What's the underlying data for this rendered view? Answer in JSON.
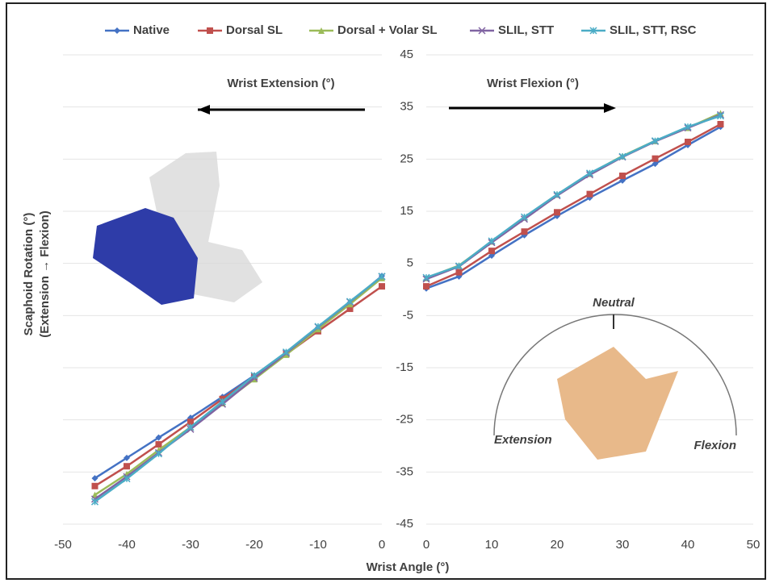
{
  "chart_data": [
    {
      "type": "line",
      "x_label": "Wrist Angle (°)",
      "y_label": [
        "Scaphoid Rotation (°)",
        "(Extension → Flexion)"
      ],
      "annotation": "Wrist Extension (°)",
      "x": [
        -45,
        -40,
        -35,
        -30,
        -25,
        -20,
        -15,
        -10,
        -5,
        0
      ],
      "xlim": [
        -50,
        0
      ],
      "xticks": [
        -50,
        -40,
        -30,
        -20,
        -10,
        0
      ],
      "ylim": [
        -45,
        45
      ],
      "series": [
        {
          "name": "Native",
          "color": "#4472c4",
          "marker": "diamond",
          "values": [
            -36.2,
            -32.3,
            -28.4,
            -24.6,
            -20.6,
            -16.5,
            -12.1,
            -7.3,
            -2.5,
            2.6
          ]
        },
        {
          "name": "Dorsal SL",
          "color": "#c0504d",
          "marker": "square",
          "values": [
            -37.7,
            -33.9,
            -29.7,
            -25.4,
            -21,
            -16.7,
            -12.4,
            -8,
            -3.7,
            0.6
          ]
        },
        {
          "name": "Dorsal + Volar SL",
          "color": "#9bbb59",
          "marker": "triangle",
          "values": [
            -39.4,
            -35.4,
            -30.8,
            -26.4,
            -21.8,
            -17.2,
            -12.5,
            -7.6,
            -2.8,
            2.2
          ]
        },
        {
          "name": "SLIL, STT",
          "color": "#8064a2",
          "marker": "x",
          "values": [
            -40.2,
            -35.9,
            -31.3,
            -26.8,
            -22,
            -17,
            -12.2,
            -7.2,
            -2.4,
            2.5
          ]
        },
        {
          "name": "SLIL, STT, RSC",
          "color": "#4bacc6",
          "marker": "star",
          "values": [
            -40.7,
            -36.3,
            -31.5,
            -26.4,
            -21.5,
            -16.5,
            -12,
            -7.1,
            -2.3,
            2.5
          ]
        }
      ]
    },
    {
      "type": "line",
      "annotation": "Wrist Flexion (°)",
      "illustration_labels": [
        "Neutral",
        "Extension",
        "Flexion"
      ],
      "x": [
        0,
        5,
        10,
        15,
        20,
        25,
        30,
        35,
        40,
        45
      ],
      "xlim": [
        0,
        50
      ],
      "xticks": [
        0,
        10,
        20,
        30,
        40,
        50
      ],
      "ylim": [
        -45,
        45
      ],
      "yticks": [
        45,
        35,
        25,
        15,
        5,
        -5,
        -15,
        -25,
        -35,
        -45
      ],
      "grid": true,
      "series": [
        {
          "color": "#4472c4",
          "marker": "diamond",
          "values": [
            0.2,
            2.5,
            6.5,
            10.4,
            14.1,
            17.6,
            20.9,
            24.1,
            27.7,
            31.2
          ]
        },
        {
          "color": "#c0504d",
          "marker": "square",
          "values": [
            0.6,
            3.3,
            7.4,
            11.1,
            14.8,
            18.3,
            21.8,
            25.1,
            28.3,
            31.7
          ]
        },
        {
          "color": "#9bbb59",
          "marker": "triangle",
          "values": [
            2.2,
            4.6,
            9.2,
            13.8,
            18.2,
            22.2,
            25.6,
            28.5,
            31,
            33.8
          ]
        },
        {
          "color": "#8064a2",
          "marker": "x",
          "values": [
            2,
            4.4,
            9,
            13.5,
            18,
            22,
            25.4,
            28.4,
            31,
            33.5
          ]
        },
        {
          "color": "#4bacc6",
          "marker": "star",
          "values": [
            2.3,
            4.5,
            9.3,
            13.9,
            18.2,
            22.3,
            25.5,
            28.5,
            31.2,
            33.3
          ]
        }
      ]
    }
  ]
}
